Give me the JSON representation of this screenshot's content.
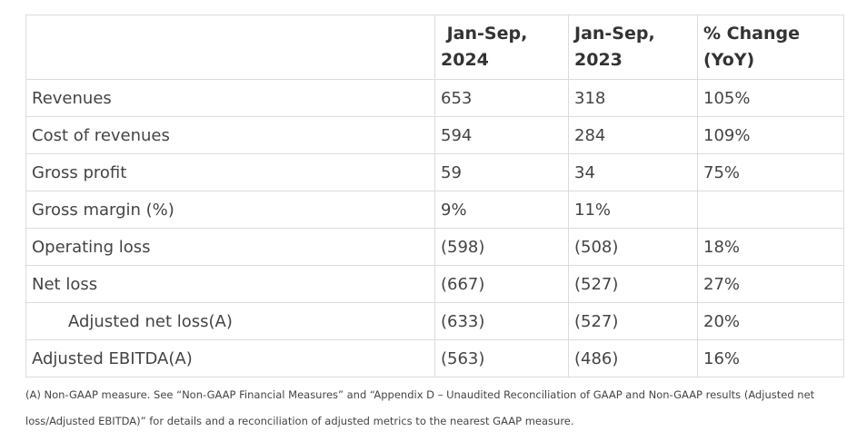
{
  "table": {
    "headers": [
      "",
      "Jan-Sep,\n2024",
      "Jan-Sep,\n2023",
      "% Change\n(YoY)"
    ],
    "header_lines": [
      [],
      [
        " Jan-Sep,",
        "2024"
      ],
      [
        "Jan-Sep,",
        "2023"
      ],
      [
        "% Change",
        "(YoY)"
      ]
    ],
    "rows": [
      {
        "label": "Revenues",
        "values": [
          "653",
          "318",
          "105%"
        ],
        "indent": false
      },
      {
        "label": "Cost of revenues",
        "values": [
          "594",
          "284",
          "109%"
        ],
        "indent": false
      },
      {
        "label": "Gross profit",
        "values": [
          "59",
          "34",
          "75%"
        ],
        "indent": false
      },
      {
        "label": "Gross margin (%)",
        "values": [
          "9%",
          "11%",
          ""
        ],
        "indent": false
      },
      {
        "label": "Operating loss",
        "values": [
          "(598)",
          "(508)",
          "18%"
        ],
        "indent": false
      },
      {
        "label": "Net loss",
        "values": [
          "(667)",
          "(527)",
          "27%"
        ],
        "indent": false
      },
      {
        "label": "Adjusted net loss(A)",
        "values": [
          "(633)",
          "(527)",
          "20%"
        ],
        "indent": true
      },
      {
        "label": "Adjusted EBITDA(A)",
        "values": [
          "(563)",
          "(486)",
          "16%"
        ],
        "indent": false
      }
    ]
  },
  "footnote": "(A) Non-GAAP measure. See “Non-GAAP Financial Measures” and “Appendix D – Unaudited Reconciliation of GAAP and Non-GAAP results (Adjusted net loss/Adjusted EBITDA)” for details and a reconciliation of adjusted metrics to the nearest GAAP measure."
}
